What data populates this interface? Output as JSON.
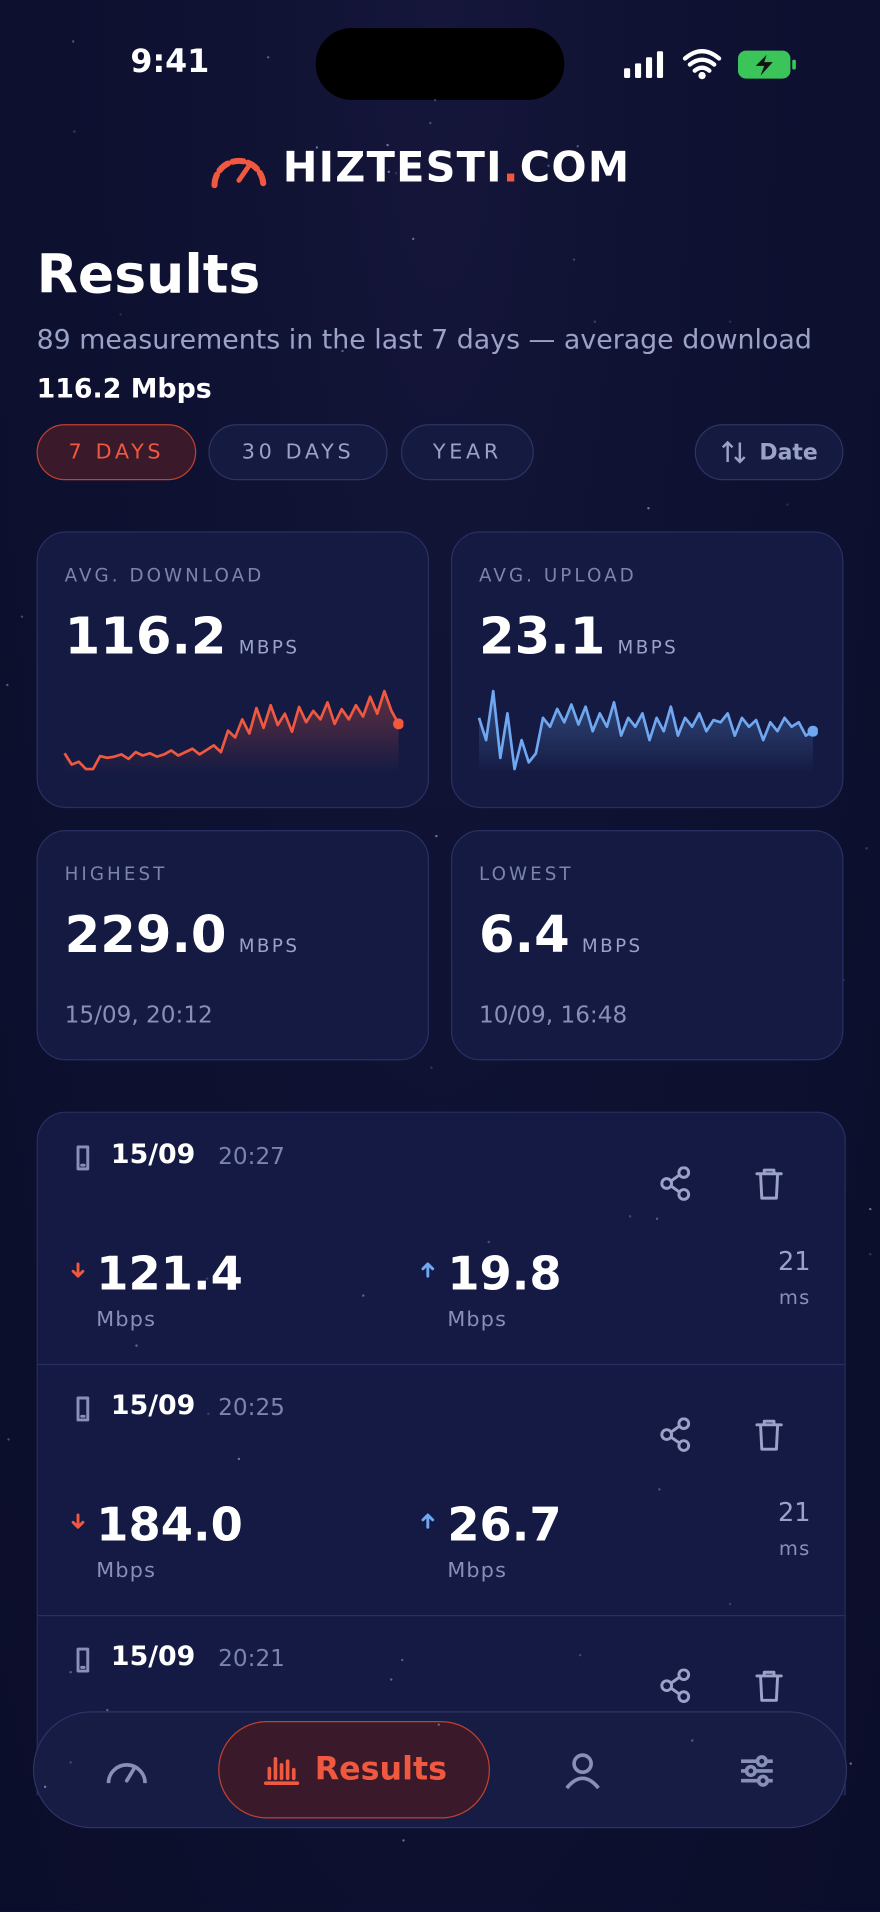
{
  "status": {
    "time": "9:41"
  },
  "brand": {
    "name": "HIZTESTI",
    "dot": ".",
    "tld": "COM"
  },
  "header": {
    "title": "Results",
    "subtitle": "89 measurements in the last 7 days — average download",
    "subtitle_value": "116.2 Mbps"
  },
  "filters": [
    {
      "label": "7 DAYS",
      "active": true
    },
    {
      "label": "30 DAYS",
      "active": false
    },
    {
      "label": "YEAR",
      "active": false
    }
  ],
  "sort": "Date",
  "stats": [
    {
      "label": "AVG. DOWNLOAD",
      "value": "116.2",
      "unit": "MBPS",
      "color": "#f0593f",
      "sparkline": [
        90,
        70,
        75,
        62,
        62,
        85,
        82,
        84,
        88,
        80,
        92,
        86,
        90,
        84,
        88,
        95,
        86,
        92,
        98,
        88,
        96,
        104,
        92,
        130,
        118,
        150,
        125,
        170,
        135,
        175,
        140,
        160,
        128,
        172,
        145,
        165,
        150,
        180,
        142,
        168,
        150,
        175,
        155,
        190,
        160,
        200,
        165,
        142
      ]
    },
    {
      "label": "AVG. UPLOAD",
      "value": "23.1",
      "unit": "MBPS",
      "color": "#6fa8f0",
      "sparkline": [
        28,
        18,
        40,
        10,
        30,
        5,
        18,
        8,
        12,
        28,
        24,
        32,
        26,
        34,
        25,
        33,
        22,
        30,
        24,
        35,
        20,
        28,
        24,
        30,
        18,
        28,
        22,
        33,
        20,
        28,
        24,
        30,
        22,
        27,
        26,
        30,
        20,
        28,
        24,
        27,
        18,
        26,
        22,
        28,
        24,
        26,
        20,
        22
      ]
    },
    {
      "label": "HIGHEST",
      "value": "229.0",
      "unit": "MBPS",
      "when": "15/09, 20:12"
    },
    {
      "label": "LOWEST",
      "value": "6.4",
      "unit": "MBPS",
      "when": "10/09, 16:48"
    }
  ],
  "results": [
    {
      "date": "15/09",
      "time": "20:27",
      "download": "121.4",
      "download_unit": "Mbps",
      "upload": "19.8",
      "upload_unit": "Mbps",
      "ping": "21",
      "ping_unit": "ms"
    },
    {
      "date": "15/09",
      "time": "20:25",
      "download": "184.0",
      "download_unit": "Mbps",
      "upload": "26.7",
      "upload_unit": "Mbps",
      "ping": "21",
      "ping_unit": "ms"
    },
    {
      "date": "15/09",
      "time": "20:21"
    }
  ],
  "nav": {
    "active_label": "Results"
  }
}
